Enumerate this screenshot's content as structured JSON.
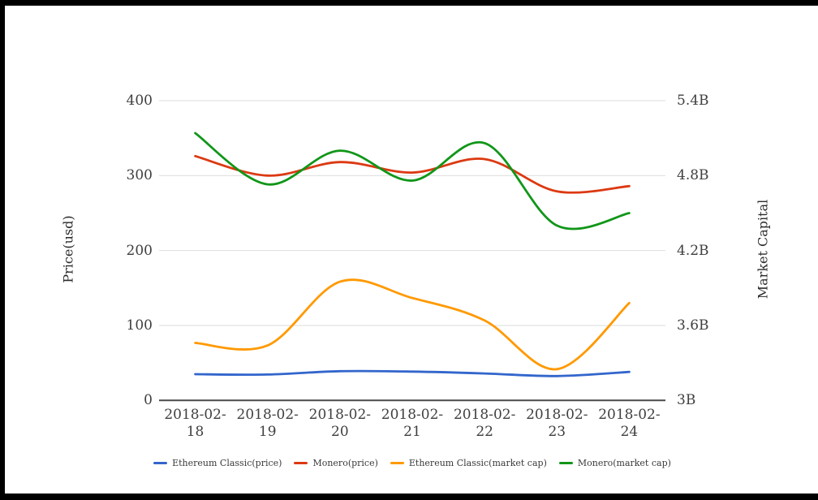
{
  "chart_data": {
    "type": "line",
    "categories": [
      "2018-02-18",
      "2018-02-19",
      "2018-02-20",
      "2018-02-21",
      "2018-02-22",
      "2018-02-23",
      "2018-02-24"
    ],
    "series": [
      {
        "name": "Ethereum Classic(price)",
        "axis": "left",
        "color": "#3366cc",
        "values": [
          35,
          34.5,
          39,
          38.5,
          36,
          32.5,
          38
        ]
      },
      {
        "name": "Monero(price)",
        "axis": "left",
        "color": "#dc3912",
        "values": [
          326,
          300,
          318,
          304,
          322,
          279,
          286
        ]
      },
      {
        "name": "Ethereum Classic(market cap)",
        "axis": "right",
        "color": "#ff9900",
        "values": [
          3.46,
          3.44,
          3.95,
          3.82,
          3.64,
          3.25,
          3.78
        ]
      },
      {
        "name": "Monero(market cap)",
        "axis": "right",
        "color": "#109618",
        "values": [
          5.14,
          4.73,
          5.0,
          4.76,
          5.06,
          4.4,
          4.5
        ]
      }
    ],
    "left_axis": {
      "label": "Price(usd)",
      "ticks": [
        "0",
        "100",
        "200",
        "300",
        "400"
      ],
      "tick_values": [
        0,
        100,
        200,
        300,
        400
      ],
      "range": [
        0,
        400
      ]
    },
    "right_axis": {
      "label": "Market Capital",
      "ticks": [
        "3B",
        "3.6B",
        "4.2B",
        "4.8B",
        "5.4B"
      ],
      "tick_values": [
        3,
        3.6,
        4.2,
        4.8,
        5.4
      ],
      "range": [
        3,
        5.4
      ]
    },
    "title": "",
    "xlabel": "",
    "legend_position": "bottom",
    "grid": true,
    "grid_color": "#dedede",
    "baseline_color": "#4a4a4a",
    "background_color": "#ffffff"
  }
}
